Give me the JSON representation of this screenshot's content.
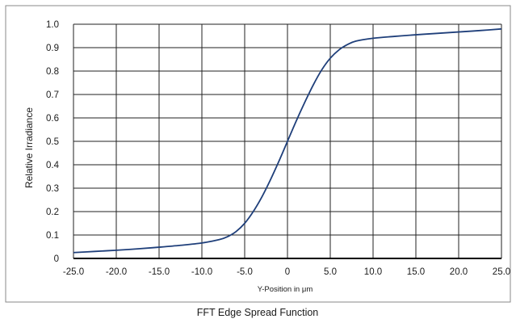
{
  "chart_data": {
    "type": "line",
    "title": "FFT Edge Spread Function",
    "xlabel": "Y-Position in μm",
    "ylabel": "Relative Irradiance",
    "xlim": [
      -25,
      25
    ],
    "ylim": [
      0,
      1.0
    ],
    "x_ticks": [
      "-25.0",
      "-20.0",
      "-15.0",
      "-10.0",
      "-5.0",
      "0",
      "5.0",
      "10.0",
      "15.0",
      "20.0",
      "25.0"
    ],
    "y_ticks": [
      "0",
      "0.1",
      "0.2",
      "0.3",
      "0.4",
      "0.5",
      "0.6",
      "0.7",
      "0.8",
      "0.9",
      "1.0"
    ],
    "grid": true,
    "line_color": "#1f3f7a",
    "series": [
      {
        "x": [
          -25,
          -22.5,
          -20,
          -17.5,
          -15,
          -12.5,
          -10,
          -8,
          -7,
          -6,
          -5,
          -4,
          -3,
          -2,
          -1,
          0,
          1,
          2,
          3,
          4,
          5,
          6,
          7,
          8,
          10,
          12.5,
          15,
          17.5,
          20,
          22.5,
          25
        ],
        "y": [
          0.025,
          0.03,
          0.035,
          0.041,
          0.048,
          0.056,
          0.066,
          0.08,
          0.093,
          0.115,
          0.15,
          0.2,
          0.262,
          0.335,
          0.415,
          0.5,
          0.585,
          0.665,
          0.74,
          0.805,
          0.855,
          0.89,
          0.913,
          0.928,
          0.94,
          0.948,
          0.955,
          0.961,
          0.967,
          0.973,
          0.98
        ]
      }
    ]
  }
}
